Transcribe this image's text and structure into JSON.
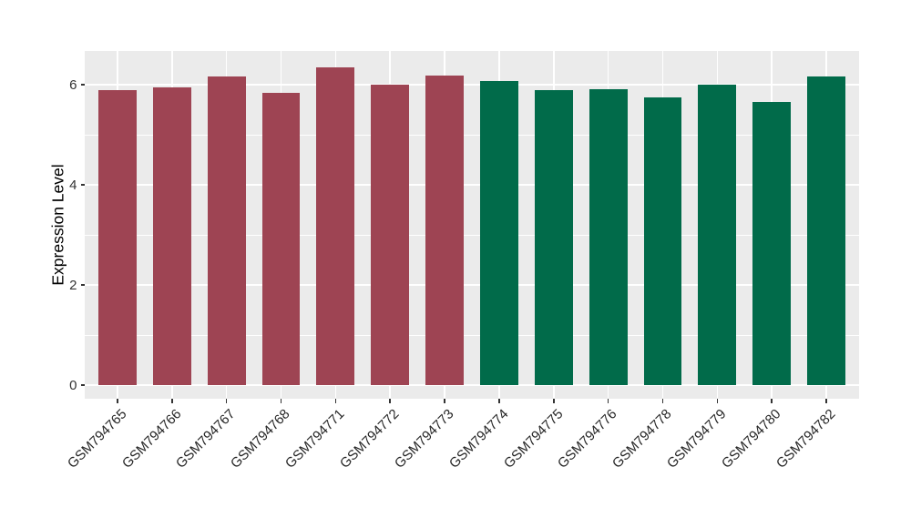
{
  "chart_data": {
    "type": "bar",
    "title": "",
    "xlabel": "",
    "ylabel": "Expression Level",
    "ylim": [
      0,
      6.67
    ],
    "yticks_major": [
      0,
      2,
      4,
      6
    ],
    "yticks_minor": [
      1,
      3,
      5
    ],
    "grid": "on",
    "legend": "none",
    "panel_bg": "#EBEBEB",
    "grid_color": "#FFFFFF",
    "categories": [
      "GSM794765",
      "GSM794766",
      "GSM794767",
      "GSM794768",
      "GSM794771",
      "GSM794772",
      "GSM794773",
      "GSM794774",
      "GSM794775",
      "GSM794776",
      "GSM794778",
      "GSM794779",
      "GSM794780",
      "GSM794782"
    ],
    "values": [
      5.89,
      5.95,
      6.17,
      5.84,
      6.35,
      6.0,
      6.19,
      6.08,
      5.89,
      5.91,
      5.74,
      6.0,
      5.65,
      6.17
    ],
    "groups": [
      "group1",
      "group1",
      "group1",
      "group1",
      "group1",
      "group1",
      "group1",
      "group2",
      "group2",
      "group2",
      "group2",
      "group2",
      "group2",
      "group2"
    ],
    "group_colors": {
      "group1": "#9E4453",
      "group2": "#016B4A"
    },
    "tick_color": "#333333"
  }
}
